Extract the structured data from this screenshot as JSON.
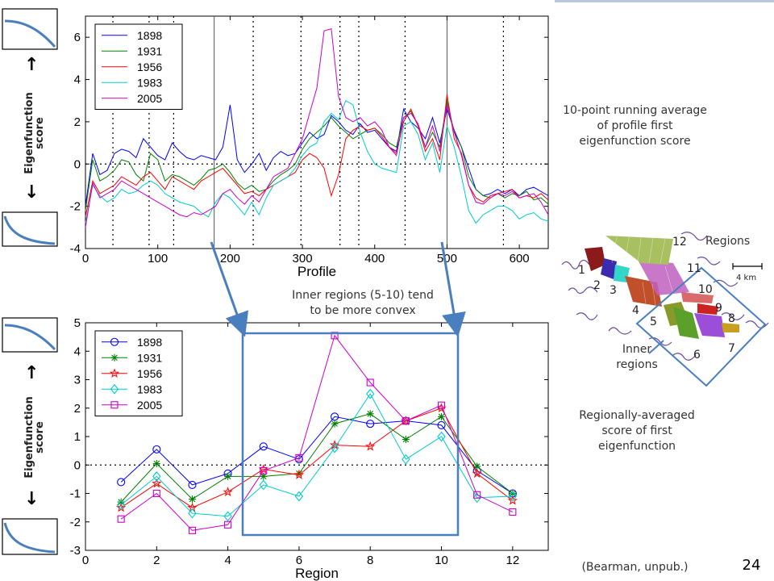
{
  "slide": {
    "page_number": "24",
    "citation": "(Bearman, unpub.)",
    "note_top": "10-point running average\nof profile first\neigenfunction score",
    "note_bottom": "Regionally-averaged\nscore of first\neigenfunction",
    "note_inner": "Inner regions (5-10) tend\nto be more convex",
    "ylabel_side": "Eigenfunction\nscore",
    "up_arrow": "↑",
    "down_arrow": "↓",
    "icons": [
      "convex-profile-icon",
      "concave-profile-icon"
    ]
  },
  "map": {
    "title": "Regions",
    "scale_label": "4 km",
    "inner_label": "Inner\nregions",
    "region_numbers": [
      "1",
      "2",
      "3",
      "4",
      "5",
      "6",
      "7",
      "8",
      "9",
      "10",
      "11",
      "12"
    ],
    "region_colors": [
      "#8b1a1a",
      "#3a2bb0",
      "#33d6c8",
      "#c0502a",
      "#8a9a2a",
      "#5aa02a",
      "#9b4fd8",
      "#c8a020",
      "#cc2222",
      "#d86a6a",
      "#c060c0",
      "#a8c060"
    ]
  },
  "chart_data": [
    {
      "type": "line",
      "xlabel": "Profile",
      "ylabel": "",
      "xlim": [
        0,
        640
      ],
      "ylim": [
        -4,
        7
      ],
      "xticks": [
        0,
        100,
        200,
        300,
        400,
        500,
        600
      ],
      "yticks": [
        -4,
        -2,
        0,
        2,
        4,
        6
      ],
      "grid": false,
      "legend_position": "top-left",
      "region_boundaries_dotted": [
        38,
        88,
        122,
        232,
        298,
        352,
        378,
        442,
        578
      ],
      "region_boundaries_solid": [
        178,
        500
      ],
      "x": [
        0,
        10,
        20,
        30,
        40,
        50,
        60,
        70,
        80,
        90,
        100,
        110,
        120,
        130,
        140,
        150,
        160,
        170,
        180,
        190,
        200,
        210,
        220,
        230,
        240,
        250,
        260,
        270,
        280,
        290,
        300,
        310,
        320,
        330,
        340,
        350,
        360,
        370,
        380,
        390,
        400,
        410,
        420,
        430,
        440,
        450,
        460,
        470,
        480,
        490,
        500,
        510,
        520,
        530,
        540,
        550,
        560,
        570,
        580,
        590,
        600,
        610,
        620,
        630,
        640
      ],
      "series": [
        {
          "name": "1898",
          "color": "#0000ff",
          "values": [
            -2.0,
            0.5,
            -0.5,
            -0.3,
            0.5,
            0.7,
            0.6,
            0.3,
            1.2,
            0.8,
            0.4,
            0.2,
            1.0,
            0.6,
            0.3,
            0.2,
            0.4,
            0.3,
            0.2,
            0.8,
            2.8,
            0.2,
            -0.4,
            0.0,
            0.5,
            -0.3,
            0.3,
            0.6,
            0.4,
            0.5,
            1.0,
            1.5,
            1.2,
            1.4,
            2.3,
            2.0,
            1.6,
            1.4,
            1.9,
            1.5,
            1.6,
            1.2,
            0.8,
            0.6,
            2.6,
            2.0,
            1.7,
            1.2,
            2.2,
            1.0,
            2.6,
            1.6,
            0.8,
            -0.2,
            -1.2,
            -1.5,
            -1.4,
            -1.2,
            -1.4,
            -1.2,
            -1.5,
            -1.2,
            -1.1,
            -1.3,
            -1.5
          ]
        },
        {
          "name": "1931",
          "color": "#008000",
          "values": [
            -2.2,
            0.2,
            -0.8,
            -0.6,
            -0.3,
            0.2,
            0.1,
            -0.5,
            -0.8,
            0.5,
            0.2,
            -0.8,
            -0.5,
            -0.6,
            -0.8,
            -1.0,
            -0.7,
            -0.3,
            -0.2,
            0.0,
            -0.4,
            -0.9,
            -1.2,
            -1.0,
            -1.3,
            -1.2,
            -0.8,
            -0.5,
            -0.3,
            0.0,
            0.7,
            1.2,
            1.5,
            1.8,
            2.2,
            1.8,
            1.5,
            1.2,
            1.4,
            1.6,
            1.7,
            1.4,
            1.0,
            0.8,
            2.2,
            2.5,
            1.8,
            0.8,
            1.5,
            0.8,
            3.0,
            1.5,
            0.8,
            -0.6,
            -1.2,
            -1.5,
            -1.6,
            -1.4,
            -1.6,
            -1.4,
            -1.5,
            -1.3,
            -1.7,
            -1.6,
            -1.9
          ]
        },
        {
          "name": "1956",
          "color": "#ff0000",
          "values": [
            -2.5,
            -0.8,
            -1.4,
            -1.2,
            -1.0,
            -0.6,
            -0.8,
            -1.0,
            -0.6,
            -0.4,
            -0.8,
            -1.2,
            -0.6,
            -0.8,
            -1.0,
            -1.2,
            -0.8,
            -0.6,
            -0.4,
            -0.2,
            -0.6,
            -1.0,
            -1.4,
            -1.3,
            -1.5,
            -1.2,
            -1.0,
            -0.8,
            -0.6,
            -0.4,
            0.2,
            0.5,
            0.3,
            -0.2,
            -1.5,
            -0.5,
            1.2,
            1.6,
            1.8,
            1.6,
            1.7,
            1.3,
            0.8,
            0.5,
            2.0,
            2.6,
            1.8,
            0.6,
            1.2,
            0.2,
            3.3,
            1.2,
            0.5,
            -1.0,
            -1.6,
            -1.8,
            -1.5,
            -1.4,
            -1.3,
            -1.2,
            -1.6,
            -1.5,
            -1.6,
            -1.4,
            -1.7
          ]
        },
        {
          "name": "1983",
          "color": "#00cccc",
          "values": [
            -2.8,
            -1.0,
            -1.5,
            -1.8,
            -1.6,
            -1.2,
            -1.4,
            -1.3,
            -1.0,
            -0.8,
            -1.0,
            -1.4,
            -1.6,
            -1.8,
            -1.9,
            -2.0,
            -2.3,
            -2.5,
            -1.8,
            -1.4,
            -1.6,
            -2.0,
            -2.4,
            -1.8,
            -2.4,
            -1.6,
            -1.0,
            -0.8,
            -0.6,
            -0.2,
            0.4,
            0.8,
            1.0,
            2.0,
            2.4,
            2.1,
            3.0,
            2.8,
            1.5,
            0.6,
            0.0,
            -0.2,
            -0.3,
            -0.4,
            1.8,
            2.0,
            1.4,
            0.2,
            1.0,
            -0.4,
            1.8,
            0.8,
            -0.6,
            -2.2,
            -2.8,
            -2.4,
            -2.2,
            -2.0,
            -2.0,
            -2.2,
            -2.6,
            -2.4,
            -2.3,
            -2.6,
            -2.7
          ]
        },
        {
          "name": "2005",
          "color": "#cc00cc",
          "values": [
            -3.0,
            -0.9,
            -1.6,
            -1.4,
            -1.2,
            -0.8,
            -1.0,
            -1.2,
            -1.4,
            -1.6,
            -1.8,
            -2.0,
            -2.2,
            -2.4,
            -2.5,
            -2.3,
            -2.4,
            -2.2,
            -2.0,
            -1.4,
            -1.2,
            -1.6,
            -1.9,
            -1.5,
            -1.8,
            -1.2,
            -0.6,
            -0.4,
            -0.2,
            0.5,
            1.2,
            2.4,
            3.6,
            6.3,
            6.4,
            3.2,
            2.2,
            2.0,
            2.2,
            1.8,
            2.0,
            1.6,
            0.8,
            0.4,
            2.2,
            2.4,
            1.9,
            0.8,
            1.8,
            0.6,
            2.8,
            1.5,
            0.4,
            -1.0,
            -1.8,
            -1.9,
            -1.6,
            -1.4,
            -1.5,
            -1.3,
            -1.6,
            -1.5,
            -1.4,
            -1.8,
            -2.4
          ]
        }
      ]
    },
    {
      "type": "line",
      "xlabel": "Region",
      "ylabel": "",
      "xlim": [
        0,
        13
      ],
      "ylim": [
        -3,
        5
      ],
      "xticks": [
        0,
        2,
        4,
        6,
        8,
        10,
        12
      ],
      "yticks": [
        -3,
        -2,
        -1,
        0,
        1,
        2,
        3,
        4,
        5
      ],
      "grid": false,
      "legend_position": "top-left",
      "x": [
        1,
        2,
        3,
        4,
        5,
        6,
        7,
        8,
        9,
        10,
        11,
        12
      ],
      "series": [
        {
          "name": "1898",
          "color": "#0000ff",
          "marker": "circle",
          "values": [
            -0.6,
            0.55,
            -0.7,
            -0.3,
            0.65,
            0.2,
            1.7,
            1.45,
            1.55,
            1.4,
            -0.2,
            -1.0
          ]
        },
        {
          "name": "1931",
          "color": "#008000",
          "marker": "asterisk",
          "values": [
            -1.3,
            0.05,
            -1.2,
            -0.4,
            -0.4,
            -0.3,
            1.45,
            1.8,
            0.9,
            1.7,
            -0.05,
            -1.0
          ]
        },
        {
          "name": "1956",
          "color": "#ff0000",
          "marker": "star",
          "values": [
            -1.5,
            -0.65,
            -1.5,
            -0.95,
            -0.15,
            -0.35,
            0.7,
            0.65,
            1.55,
            2.0,
            -0.3,
            -1.25
          ]
        },
        {
          "name": "1983",
          "color": "#00cccc",
          "marker": "diamond",
          "values": [
            -1.4,
            -0.4,
            -1.7,
            -1.8,
            -0.7,
            -1.1,
            0.6,
            2.5,
            0.2,
            1.0,
            -1.15,
            -1.1
          ]
        },
        {
          "name": "2005",
          "color": "#cc00cc",
          "marker": "square",
          "values": [
            -1.9,
            -1.0,
            -2.3,
            -2.1,
            -0.2,
            0.25,
            4.55,
            2.9,
            1.55,
            2.1,
            -1.05,
            -1.65
          ]
        }
      ]
    }
  ]
}
